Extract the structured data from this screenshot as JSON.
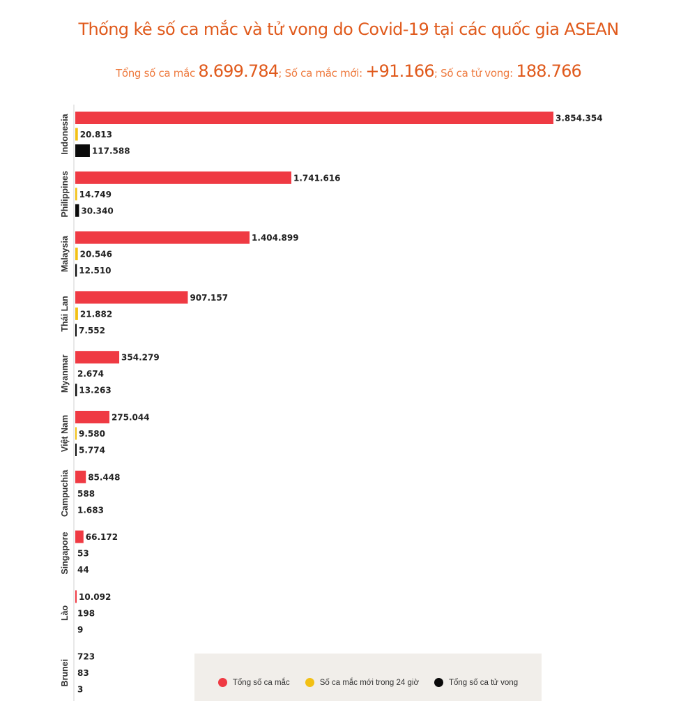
{
  "title": "Thống kê số ca mắc và tử vong do Covid-19 tại các quốc gia ASEAN",
  "summary": {
    "total_label": "Tổng số ca mắc",
    "total_value": "8.699.784",
    "sep1": ";",
    "new_label": "Số ca mắc mới:",
    "new_value": "+91.166",
    "sep2": ";",
    "deaths_label": "Số ca tử vong:",
    "deaths_value": "188.766"
  },
  "legend": {
    "position": "bottom-center",
    "items": [
      {
        "label": "Tổng số ca mắc",
        "color": "#ef3a43"
      },
      {
        "label": "Số ca mắc mới trong 24 giờ",
        "color": "#f2c014"
      },
      {
        "label": "Tổng số ca tử vong",
        "color": "#0a0a0a"
      }
    ]
  },
  "chart_data": {
    "type": "bar",
    "orientation": "horizontal",
    "title": "Thống kê số ca mắc và tử vong do Covid-19 tại các quốc gia ASEAN",
    "categories": [
      "Indonesia",
      "Philippines",
      "Malaysia",
      "Thái Lan",
      "Myanmar",
      "Việt Nam",
      "Campuchia",
      "Singapore",
      "Lào",
      "Brunei"
    ],
    "series": [
      {
        "name": "Tổng số ca mắc",
        "color": "#ef3a43",
        "values": [
          3854354,
          1741616,
          1404899,
          907157,
          354279,
          275044,
          85448,
          66172,
          10092,
          723
        ],
        "labels": [
          "3.854.354",
          "1.741.616",
          "1.404.899",
          "907.157",
          "354.279",
          "275.044",
          "85.448",
          "66.172",
          "10.092",
          "723"
        ]
      },
      {
        "name": "Số ca mắc mới trong 24 giờ",
        "color": "#f2c014",
        "values": [
          20813,
          14749,
          20546,
          21882,
          2674,
          9580,
          588,
          53,
          198,
          83
        ],
        "labels": [
          "20.813",
          "14.749",
          "20.546",
          "21.882",
          "2.674",
          "9.580",
          "588",
          "53",
          "198",
          "83"
        ]
      },
      {
        "name": "Tổng số ca tử vong",
        "color": "#0a0a0a",
        "values": [
          117588,
          30340,
          12510,
          7552,
          13263,
          5774,
          1683,
          44,
          9,
          3
        ],
        "labels": [
          "117.588",
          "30.340",
          "12.510",
          "7.552",
          "13.263",
          "5.774",
          "1.683",
          "44",
          "9",
          "3"
        ]
      }
    ],
    "grid": false
  }
}
